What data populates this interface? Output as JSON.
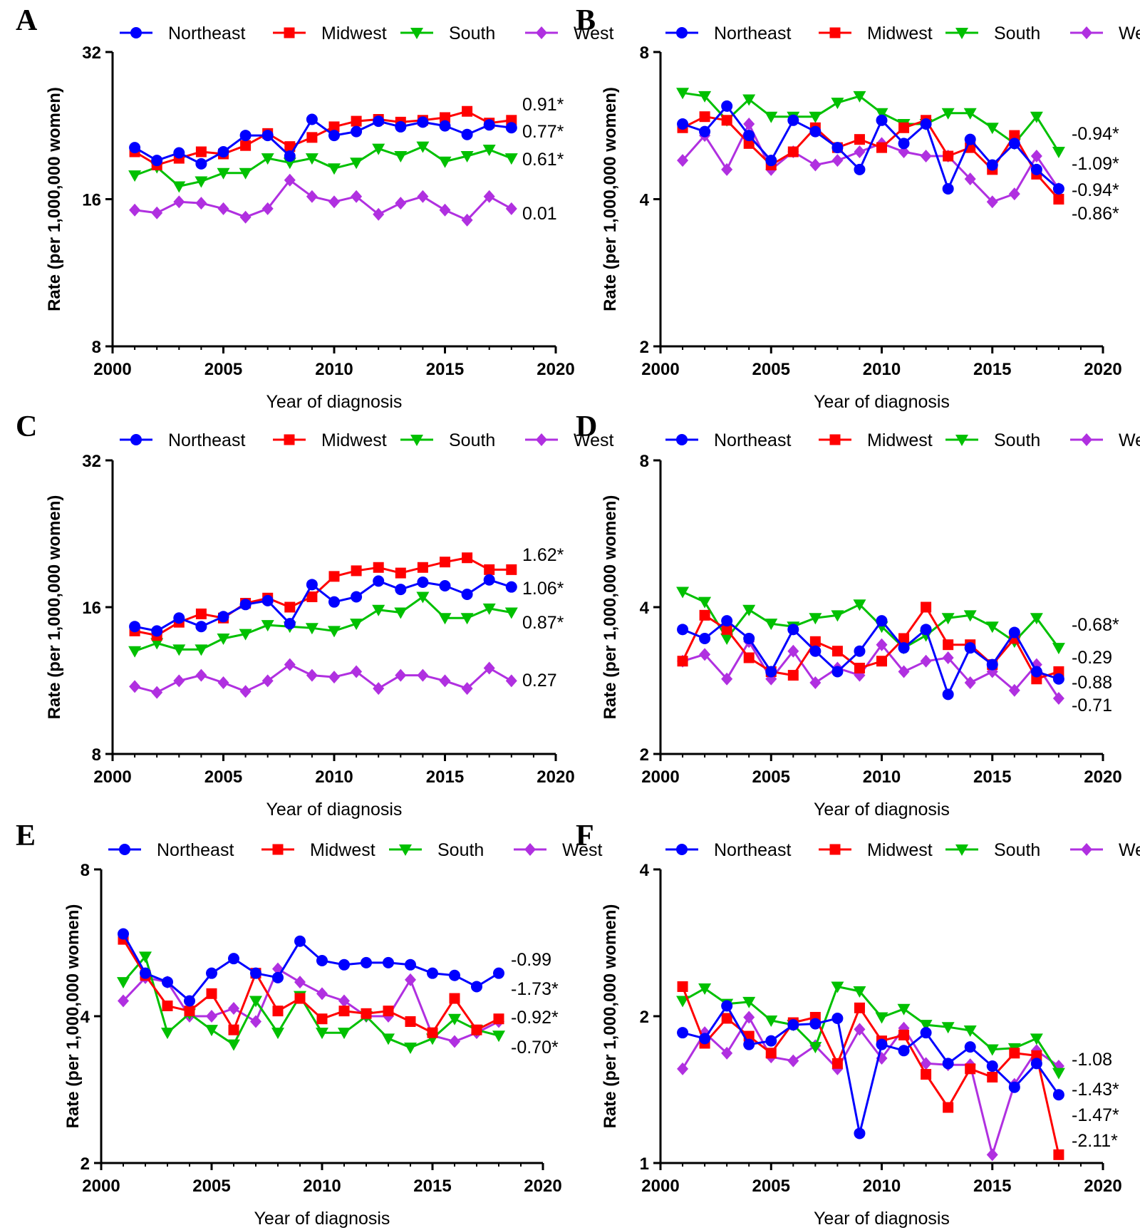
{
  "figure": {
    "legend_items": [
      "Northeast",
      "Midwest",
      "South",
      "West"
    ],
    "colors": {
      "Northeast": "#0000ff",
      "Midwest": "#ff0000",
      "South": "#00c000",
      "West": "#b030e0"
    },
    "markers": {
      "Northeast": "circle",
      "Midwest": "square",
      "South": "triangle-down",
      "West": "diamond"
    }
  },
  "chart_data": [
    {
      "panel": "A",
      "type": "line",
      "xlabel": "Year of diagnosis",
      "ylabel": "Rate (per 1,000,000 women)",
      "y_scale": "log2",
      "ylim": [
        8,
        32
      ],
      "yticks": [
        8,
        16,
        32
      ],
      "xlim": [
        2000,
        2020
      ],
      "xticks": [
        2000,
        2005,
        2010,
        2015,
        2020
      ],
      "x": [
        2001,
        2002,
        2003,
        2004,
        2005,
        2006,
        2007,
        2008,
        2009,
        2010,
        2011,
        2012,
        2013,
        2014,
        2015,
        2016,
        2017,
        2018
      ],
      "series": [
        {
          "name": "Northeast",
          "values": [
            20.4,
            19.2,
            19.9,
            18.9,
            20.0,
            21.6,
            21.6,
            19.6,
            23.3,
            21.6,
            22.0,
            23.1,
            22.5,
            23.0,
            22.6,
            21.7,
            22.7,
            22.4
          ]
        },
        {
          "name": "Midwest",
          "values": [
            20.0,
            18.8,
            19.4,
            20.0,
            19.8,
            20.6,
            21.8,
            20.5,
            21.4,
            22.5,
            23.1,
            23.3,
            23.0,
            23.2,
            23.5,
            24.2,
            22.9,
            23.2
          ]
        },
        {
          "name": "South",
          "values": [
            17.9,
            18.6,
            17.0,
            17.4,
            18.1,
            18.1,
            19.4,
            19.0,
            19.4,
            18.5,
            19.0,
            20.3,
            19.6,
            20.5,
            19.1,
            19.6,
            20.2,
            19.4
          ]
        },
        {
          "name": "West",
          "values": [
            15.2,
            15.0,
            15.8,
            15.7,
            15.3,
            14.7,
            15.3,
            17.5,
            16.2,
            15.8,
            16.2,
            14.9,
            15.7,
            16.2,
            15.2,
            14.5,
            16.2,
            15.3
          ]
        }
      ],
      "annotations": [
        "0.91*",
        "0.77*",
        "0.61*",
        "0.01"
      ]
    },
    {
      "panel": "B",
      "type": "line",
      "xlabel": "Year of diagnosis",
      "ylabel": "Rate (per 1,000,000 women)",
      "y_scale": "log2",
      "ylim": [
        2,
        8
      ],
      "yticks": [
        2,
        4,
        8
      ],
      "xlim": [
        2000,
        2020
      ],
      "xticks": [
        2000,
        2005,
        2010,
        2015,
        2020
      ],
      "x": [
        2001,
        2002,
        2003,
        2004,
        2005,
        2006,
        2007,
        2008,
        2009,
        2010,
        2011,
        2012,
        2013,
        2014,
        2015,
        2016,
        2017,
        2018
      ],
      "series": [
        {
          "name": "Northeast",
          "values": [
            5.7,
            5.5,
            6.2,
            5.4,
            4.8,
            5.8,
            5.5,
            5.1,
            4.6,
            5.8,
            5.2,
            5.7,
            4.2,
            5.3,
            4.7,
            5.2,
            4.6,
            4.2
          ]
        },
        {
          "name": "Midwest",
          "values": [
            5.6,
            5.9,
            5.8,
            5.2,
            4.7,
            5.0,
            5.6,
            5.1,
            5.3,
            5.1,
            5.6,
            5.8,
            4.9,
            5.1,
            4.6,
            5.4,
            4.5,
            4.0
          ]
        },
        {
          "name": "South",
          "values": [
            6.6,
            6.5,
            5.8,
            6.4,
            5.9,
            5.9,
            5.9,
            6.3,
            6.5,
            6.0,
            5.7,
            5.7,
            6.0,
            6.0,
            5.6,
            5.2,
            5.9,
            5.0
          ]
        },
        {
          "name": "West",
          "values": [
            4.8,
            5.4,
            4.6,
            5.7,
            4.6,
            5.0,
            4.7,
            4.8,
            5.0,
            5.2,
            5.0,
            4.9,
            4.9,
            4.4,
            3.95,
            4.1,
            4.9,
            4.2
          ]
        }
      ],
      "annotations": [
        "-0.94*",
        "-1.09*",
        "-0.94*",
        "-0.86*"
      ]
    },
    {
      "panel": "C",
      "type": "line",
      "xlabel": "Year of diagnosis",
      "ylabel": "Rate (per 1,000,000 women)",
      "y_scale": "log2",
      "ylim": [
        8,
        32
      ],
      "yticks": [
        8,
        16,
        32
      ],
      "xlim": [
        2000,
        2020
      ],
      "xticks": [
        2000,
        2005,
        2010,
        2015,
        2020
      ],
      "x": [
        2001,
        2002,
        2003,
        2004,
        2005,
        2006,
        2007,
        2008,
        2009,
        2010,
        2011,
        2012,
        2013,
        2014,
        2015,
        2016,
        2017,
        2018
      ],
      "series": [
        {
          "name": "Northeast",
          "values": [
            14.6,
            14.3,
            15.2,
            14.6,
            15.3,
            16.2,
            16.5,
            14.8,
            17.8,
            16.4,
            16.8,
            18.1,
            17.4,
            18.0,
            17.7,
            17.0,
            18.2,
            17.6
          ]
        },
        {
          "name": "Midwest",
          "values": [
            14.3,
            14.0,
            14.9,
            15.5,
            15.2,
            16.3,
            16.7,
            16.0,
            16.8,
            18.5,
            19.0,
            19.3,
            18.8,
            19.3,
            19.8,
            20.2,
            19.1,
            19.1
          ]
        },
        {
          "name": "South",
          "values": [
            13.0,
            13.5,
            13.1,
            13.1,
            13.8,
            14.1,
            14.7,
            14.6,
            14.5,
            14.3,
            14.8,
            15.8,
            15.6,
            16.8,
            15.2,
            15.2,
            15.9,
            15.6
          ]
        },
        {
          "name": "West",
          "values": [
            11.0,
            10.7,
            11.3,
            11.6,
            11.2,
            10.75,
            11.3,
            12.2,
            11.6,
            11.5,
            11.8,
            10.9,
            11.6,
            11.6,
            11.3,
            10.9,
            12.0,
            11.3
          ]
        }
      ],
      "annotations": [
        "1.62*",
        "1.06*",
        "0.87*",
        "0.27"
      ]
    },
    {
      "panel": "D",
      "type": "line",
      "xlabel": "Year of diagnosis",
      "ylabel": "Rate (per 1,000,000 women)",
      "y_scale": "log2",
      "ylim": [
        2,
        8
      ],
      "yticks": [
        2,
        4,
        8
      ],
      "xlim": [
        2000,
        2020
      ],
      "xticks": [
        2000,
        2005,
        2010,
        2015,
        2020
      ],
      "x": [
        2001,
        2002,
        2003,
        2004,
        2005,
        2006,
        2007,
        2008,
        2009,
        2010,
        2011,
        2012,
        2013,
        2014,
        2015,
        2016,
        2017,
        2018
      ],
      "series": [
        {
          "name": "Northeast",
          "values": [
            3.6,
            3.45,
            3.75,
            3.45,
            2.95,
            3.6,
            3.25,
            2.95,
            3.25,
            3.75,
            3.3,
            3.6,
            2.65,
            3.3,
            3.05,
            3.55,
            2.95,
            2.85
          ]
        },
        {
          "name": "Midwest",
          "values": [
            3.1,
            3.85,
            3.6,
            3.15,
            2.95,
            2.9,
            3.4,
            3.25,
            3.0,
            3.1,
            3.45,
            4.0,
            3.35,
            3.35,
            3.05,
            3.45,
            2.85,
            2.95
          ]
        },
        {
          "name": "South",
          "values": [
            4.3,
            4.1,
            3.45,
            3.95,
            3.7,
            3.65,
            3.8,
            3.85,
            4.05,
            3.65,
            3.3,
            3.5,
            3.8,
            3.85,
            3.65,
            3.4,
            3.8,
            3.3
          ]
        },
        {
          "name": "West",
          "values": [
            3.1,
            3.2,
            2.85,
            3.4,
            2.85,
            3.25,
            2.8,
            3.0,
            2.9,
            3.35,
            2.95,
            3.1,
            3.15,
            2.8,
            2.95,
            2.7,
            3.05,
            2.6
          ]
        }
      ],
      "annotations": [
        "-0.68*",
        "-0.29",
        "-0.88",
        "-0.71"
      ]
    },
    {
      "panel": "E",
      "type": "line",
      "xlabel": "Year of diagnosis",
      "ylabel": "Rate (per 1,000,000 women)",
      "y_scale": "log2",
      "ylim": [
        2,
        8
      ],
      "yticks": [
        2,
        4,
        8
      ],
      "xlim": [
        2000,
        2020
      ],
      "xticks": [
        2000,
        2005,
        2010,
        2015,
        2020
      ],
      "x": [
        2001,
        2002,
        2003,
        2004,
        2005,
        2006,
        2007,
        2008,
        2009,
        2010,
        2011,
        2012,
        2013,
        2014,
        2015,
        2016,
        2017,
        2018
      ],
      "series": [
        {
          "name": "Northeast",
          "values": [
            5.9,
            4.9,
            4.7,
            4.3,
            4.9,
            5.25,
            4.9,
            4.8,
            5.7,
            5.2,
            5.1,
            5.15,
            5.15,
            5.1,
            4.9,
            4.85,
            4.6,
            4.9
          ]
        },
        {
          "name": "Midwest",
          "values": [
            5.75,
            4.85,
            4.2,
            4.1,
            4.45,
            3.75,
            4.9,
            4.1,
            4.35,
            3.95,
            4.1,
            4.05,
            4.1,
            3.9,
            3.7,
            4.35,
            3.75,
            3.95
          ]
        },
        {
          "name": "South",
          "values": [
            4.7,
            5.3,
            3.7,
            4.05,
            3.75,
            3.5,
            4.3,
            3.7,
            4.4,
            3.7,
            3.7,
            4.0,
            3.6,
            3.45,
            3.6,
            3.95,
            3.75,
            3.65
          ]
        },
        {
          "name": "West",
          "values": [
            4.3,
            4.8,
            4.7,
            4.0,
            4.0,
            4.15,
            3.9,
            5.0,
            4.7,
            4.45,
            4.3,
            4.0,
            4.0,
            4.75,
            3.65,
            3.55,
            3.7,
            3.9
          ]
        }
      ],
      "annotations": [
        "-0.99",
        "-1.73*",
        "-0.92*",
        "-0.70*"
      ]
    },
    {
      "panel": "F",
      "type": "line",
      "xlabel": "Year of diagnosis",
      "ylabel": "Rate (per 1,000,000 women)",
      "y_scale": "log2",
      "ylim": [
        1,
        4
      ],
      "yticks": [
        1,
        2,
        4
      ],
      "xlim": [
        2000,
        2020
      ],
      "xticks": [
        2000,
        2005,
        2010,
        2015,
        2020
      ],
      "x": [
        2001,
        2002,
        2003,
        2004,
        2005,
        2006,
        2007,
        2008,
        2009,
        2010,
        2011,
        2012,
        2013,
        2014,
        2015,
        2016,
        2017,
        2018
      ],
      "series": [
        {
          "name": "Northeast",
          "values": [
            1.85,
            1.8,
            2.1,
            1.75,
            1.78,
            1.92,
            1.93,
            1.98,
            1.15,
            1.75,
            1.7,
            1.85,
            1.6,
            1.73,
            1.58,
            1.43,
            1.6,
            1.38
          ]
        },
        {
          "name": "Midwest",
          "values": [
            2.3,
            1.76,
            1.98,
            1.82,
            1.68,
            1.94,
            1.99,
            1.6,
            2.08,
            1.78,
            1.83,
            1.52,
            1.3,
            1.56,
            1.5,
            1.68,
            1.66,
            1.04
          ]
        },
        {
          "name": "South",
          "values": [
            2.15,
            2.28,
            2.12,
            2.14,
            1.96,
            1.92,
            1.73,
            2.3,
            2.25,
            1.99,
            2.07,
            1.92,
            1.9,
            1.87,
            1.71,
            1.72,
            1.8,
            1.53
          ]
        },
        {
          "name": "West",
          "values": [
            1.56,
            1.85,
            1.68,
            1.99,
            1.65,
            1.62,
            1.74,
            1.56,
            1.88,
            1.64,
            1.89,
            1.6,
            1.59,
            1.59,
            1.04,
            1.45,
            1.7,
            1.58
          ]
        }
      ],
      "annotations": [
        "-1.08",
        "-1.43*",
        "-1.47*",
        "-2.11*"
      ]
    }
  ]
}
